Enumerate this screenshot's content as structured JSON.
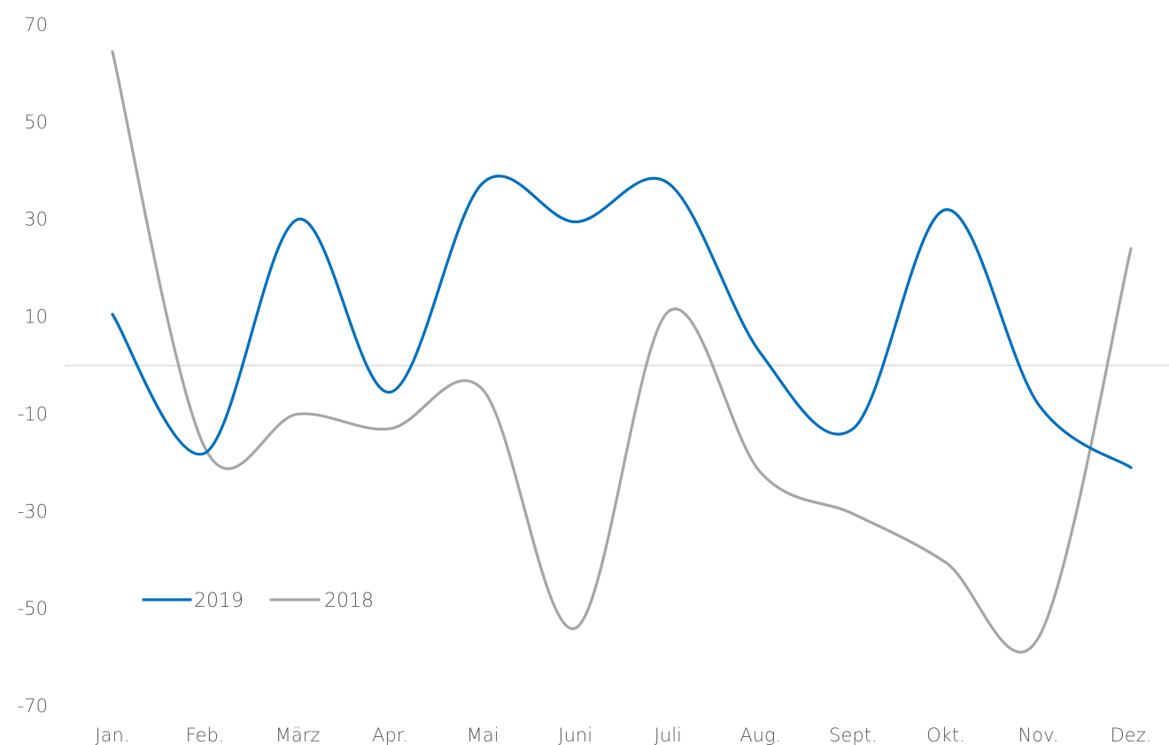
{
  "chart_data": {
    "type": "line",
    "title": "",
    "xlabel": "",
    "ylabel": "",
    "categories": [
      "Jan.",
      "Feb.",
      "März",
      "Apr.",
      "Mai",
      "Juni",
      "Juli",
      "Aug.",
      "Sept.",
      "Okt.",
      "Nov.",
      "Dez."
    ],
    "ylim": [
      -70,
      70
    ],
    "yticks": [
      70,
      50,
      30,
      10,
      -10,
      -30,
      -50,
      -70
    ],
    "zero_line": true,
    "grid": false,
    "smooth": true,
    "legend": {
      "position": "bottom-left"
    },
    "series": [
      {
        "name": "2019",
        "color": "#0070C0",
        "values": [
          10.5,
          -18,
          30,
          -5.5,
          37.5,
          29.5,
          37.5,
          2.5,
          -13,
          32,
          -8,
          -21
        ]
      },
      {
        "name": "2018",
        "color": "#A6A6A6",
        "values": [
          64.5,
          -17,
          -10,
          -13,
          -5,
          -54,
          11,
          -22,
          -30.5,
          -40.5,
          -56,
          24
        ]
      }
    ]
  }
}
